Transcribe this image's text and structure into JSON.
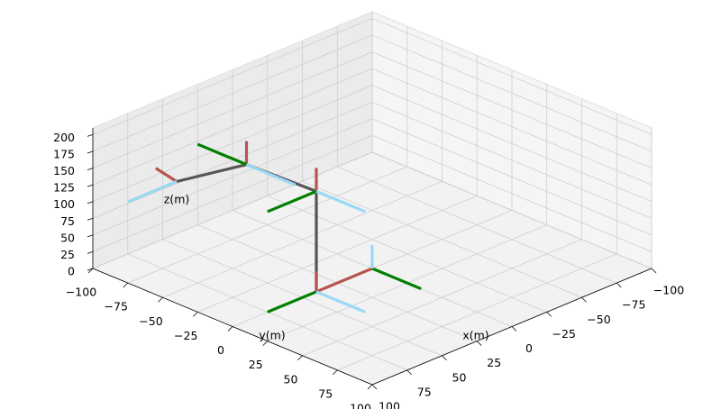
{
  "chart_data": {
    "type": "line3d",
    "xlabel": "x(m)",
    "ylabel": "y(m)",
    "zlabel": "z(m)",
    "xlim": [
      -100,
      100
    ],
    "ylim": [
      -100,
      100
    ],
    "zlim": [
      0,
      210
    ],
    "xticks": [
      {
        "value": -100,
        "label": "−100"
      },
      {
        "value": -75,
        "label": "−75"
      },
      {
        "value": -50,
        "label": "−50"
      },
      {
        "value": -25,
        "label": "−25"
      },
      0,
      25,
      50,
      75,
      100
    ],
    "yticks": [
      {
        "value": -100,
        "label": "−100"
      },
      {
        "value": -75,
        "label": "−75"
      },
      {
        "value": -50,
        "label": "−50"
      },
      {
        "value": -25,
        "label": "−25"
      },
      0,
      25,
      50,
      75,
      100
    ],
    "zticks": [
      0,
      25,
      50,
      75,
      100,
      125,
      150,
      175,
      200
    ],
    "grid": true,
    "series": [
      {
        "color": "#555555",
        "x": [
          40,
          40,
          65,
          100
        ],
        "y": [
          0,
          0,
          -25,
          -40
        ],
        "z": [
          0,
          150,
          190,
          182
        ]
      },
      {
        "color": "#b85450",
        "x": [
          0,
          40
        ],
        "y": [
          0,
          0
        ],
        "z": [
          0,
          0
        ]
      },
      {
        "color": "#008000",
        "x": [
          0,
          0
        ],
        "y": [
          0,
          35
        ],
        "z": [
          0,
          0
        ]
      },
      {
        "color": "#99d9f5",
        "x": [
          0,
          0
        ],
        "y": [
          0,
          0
        ],
        "z": [
          0,
          35
        ]
      },
      {
        "color": "#b85450",
        "x": [
          40,
          40
        ],
        "y": [
          0,
          0
        ],
        "z": [
          0,
          30
        ]
      },
      {
        "color": "#008000",
        "x": [
          40,
          75
        ],
        "y": [
          0,
          0
        ],
        "z": [
          0,
          0
        ]
      },
      {
        "color": "#99d9f5",
        "x": [
          40,
          40
        ],
        "y": [
          0,
          35
        ],
        "z": [
          0,
          0
        ]
      },
      {
        "color": "#b85450",
        "x": [
          40,
          40
        ],
        "y": [
          0,
          0
        ],
        "z": [
          150,
          185
        ]
      },
      {
        "color": "#008000",
        "x": [
          40,
          75
        ],
        "y": [
          0,
          0
        ],
        "z": [
          150,
          150
        ]
      },
      {
        "color": "#99d9f5",
        "x": [
          40,
          40
        ],
        "y": [
          0,
          35
        ],
        "z": [
          150,
          150
        ]
      },
      {
        "color": "#b85450",
        "x": [
          65,
          65
        ],
        "y": [
          -25,
          -25
        ],
        "z": [
          190,
          225
        ]
      },
      {
        "color": "#008000",
        "x": [
          65,
          65
        ],
        "y": [
          -25,
          -60
        ],
        "z": [
          190,
          190
        ]
      },
      {
        "color": "#99d9f5",
        "x": [
          65,
          65
        ],
        "y": [
          -25,
          10
        ],
        "z": [
          190,
          190
        ]
      },
      {
        "color": "#b85450",
        "x": [
          100,
          115
        ],
        "y": [
          -40,
          -40
        ],
        "z": [
          182,
          215
        ]
      },
      {
        "color": "#99d9f5",
        "x": [
          100,
          135
        ],
        "y": [
          -40,
          -40
        ],
        "z": [
          182,
          182
        ]
      }
    ]
  }
}
